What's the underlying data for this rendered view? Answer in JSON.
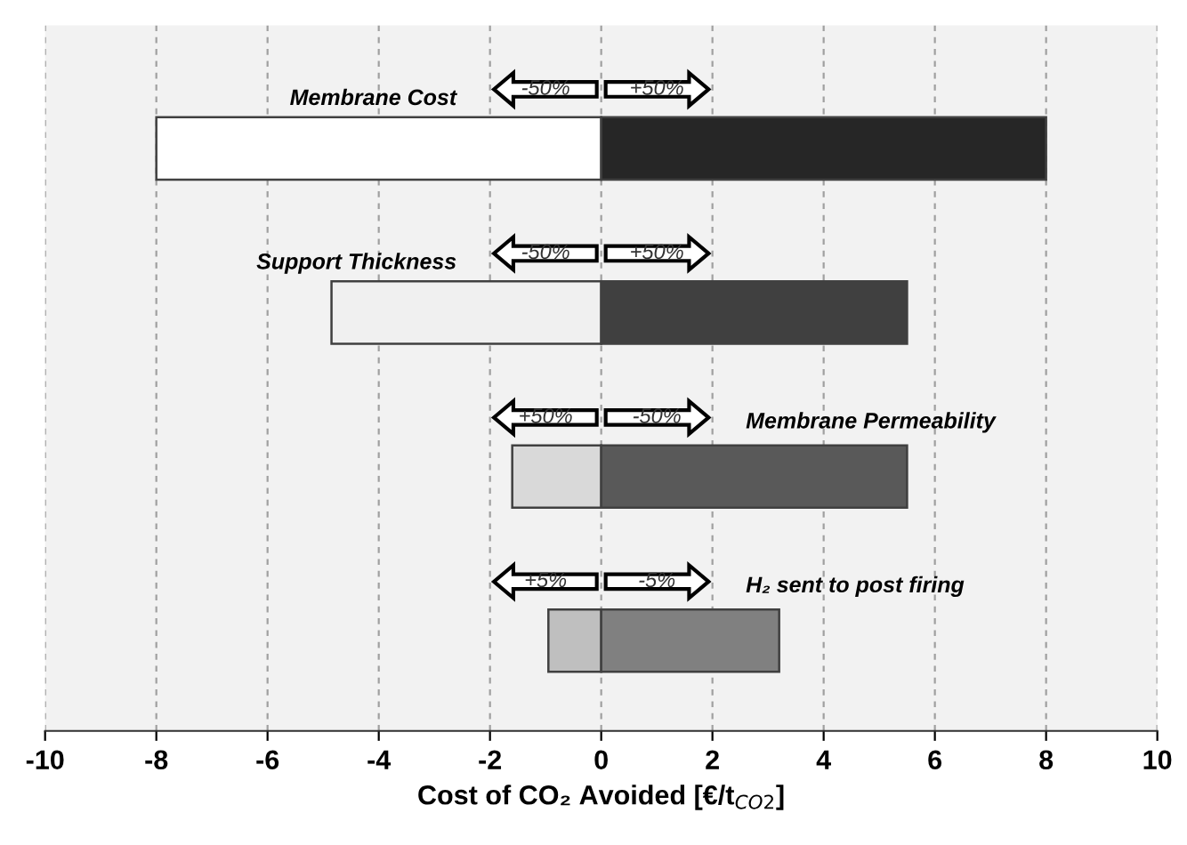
{
  "chart_data": {
    "type": "bar",
    "orientation": "horizontal",
    "stacked": true,
    "categories": [
      "Membrane Cost",
      "Support Thickness",
      "Membrane Permeability",
      "H₂ sent to post firing"
    ],
    "series": [
      {
        "colors": [
          "#ffffff",
          "#f0f0f0",
          "#d9d9d9",
          "#bfbfbf"
        ],
        "values": [
          -8,
          -4.85,
          -1.6,
          -0.95
        ]
      },
      {
        "colors": [
          "#262626",
          "#404040",
          "#595959",
          "#808080"
        ],
        "values": [
          8,
          5.5,
          5.5,
          3.2
        ]
      }
    ],
    "xlabel": "Cost of CO₂ Avoided [€/t$_{CO2}$]",
    "xlim": [
      -10,
      10
    ],
    "xticks": [
      -10,
      -8,
      -6,
      -4,
      -2,
      0,
      2,
      4,
      6,
      8,
      10
    ],
    "grid": "x",
    "legend": false,
    "tick_labels": "x",
    "annotations": [
      "-50%",
      "+50%",
      "-50%",
      "+50%",
      "+50%",
      "-50%",
      "+5%",
      "-5%"
    ]
  }
}
